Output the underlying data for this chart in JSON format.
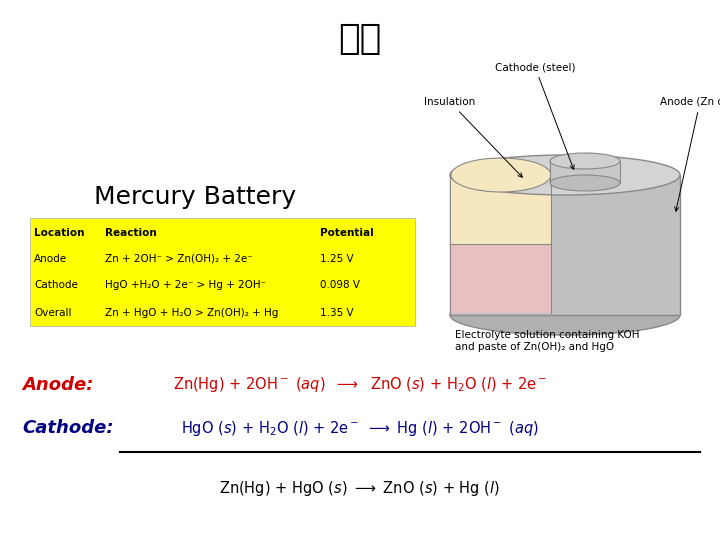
{
  "title": "전지",
  "title_fontsize": 26,
  "mercury_battery_title": "Mercury Battery",
  "mercury_battery_fontsize": 18,
  "table_header": [
    "Location",
    "Reaction",
    "Potential"
  ],
  "table_rows": [
    [
      "Anode",
      "Zn + 2OH⁻ > Zn(OH)₂ + 2e⁻",
      "1.25 V"
    ],
    [
      "Cathode",
      "HgO +H₂O + 2e⁻ > Hg + 2OH⁻",
      "0.098 V"
    ],
    [
      "Overall",
      "Zn + HgO + H₂O > Zn(OH)₂ + Hg",
      "1.35 V"
    ]
  ],
  "table_bg": "#FFFF00",
  "anode_label": "Anode:",
  "anode_color": "#CC0000",
  "cathode_label": "Cathode:",
  "cathode_color": "#000080",
  "overall_color": "#000000",
  "bg_color": "#FFFFFF",
  "battery_body_color": "#C0C0C0",
  "battery_top_color": "#D4D4D4",
  "battery_inner_cream": "#F5E8C0",
  "battery_inner_pink": "#E8C0C0",
  "battery_button_color": "#B8B8B8",
  "battery_edge_color": "#888888"
}
